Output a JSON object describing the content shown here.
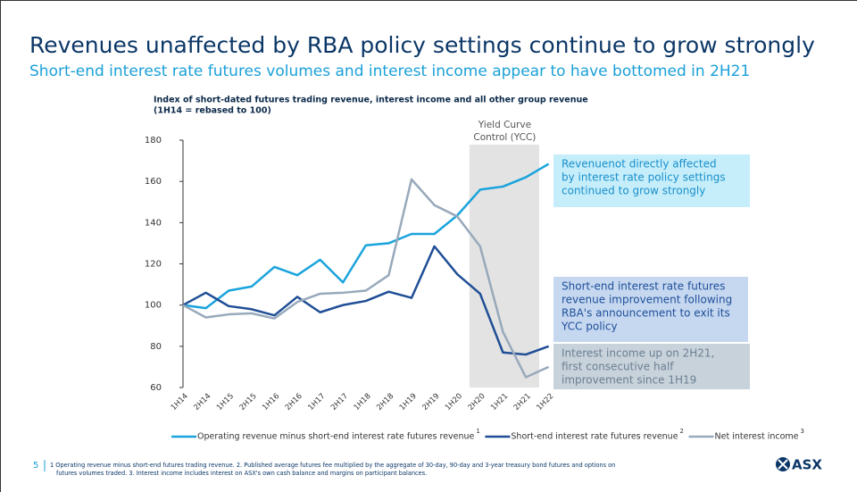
{
  "title": "Revenues unaffected by RBA policy settings continue to grow strongly",
  "subtitle": "Short-end interest rate futures volumes and interest income appear to have bottomed in 2H21",
  "page_number": "5",
  "footnote": [
    "1 Operating revenue minus short-end futures trading revenue. 2. Published average futures fee multiplied by the aggregate of 30-day, 90-day and 3-year treasury bond futures and options on",
    "futures volumes traded. 3. Interest income includes interest on ASX's own cash balance and margins on participant balances."
  ],
  "logo": "ASX",
  "chart_data": {
    "type": "line",
    "title": [
      "Index of short-dated futures trading revenue, interest income and all other group revenue",
      "(1H14 = rebased to 100)"
    ],
    "categories": [
      "1H14",
      "2H14",
      "1H15",
      "2H15",
      "1H16",
      "2H16",
      "1H17",
      "2H17",
      "1H18",
      "2H18",
      "1H19",
      "2H19",
      "1H20",
      "2H20",
      "1H21",
      "2H21",
      "1H22"
    ],
    "ylim": [
      60,
      180
    ],
    "yticks": [
      60,
      80,
      100,
      120,
      140,
      160,
      180
    ],
    "shade": {
      "label": [
        "Yield Curve",
        "Control (YCC)"
      ],
      "from": "2H20",
      "to": "2H21",
      "color": "#e3e3e3"
    },
    "series": [
      {
        "name": "Operating revenue minus short-end interest rate futures revenue",
        "note": "1",
        "color": "#1aa3dc",
        "values": [
          100,
          98.5,
          107,
          109,
          118.5,
          114.5,
          122,
          111,
          129,
          130,
          134.5,
          134.5,
          143.5,
          156,
          157.5,
          162,
          168.5
        ]
      },
      {
        "name": "Short-end interest rate futures revenue",
        "note": "2",
        "color": "#1f4e96",
        "values": [
          100,
          106,
          99.5,
          98,
          95,
          104,
          96.5,
          100,
          102,
          106.5,
          103.5,
          128.5,
          115,
          105.5,
          77,
          76,
          80
        ]
      },
      {
        "name": "Net interest income",
        "note": "3",
        "color": "#98a9bb",
        "values": [
          100,
          94,
          95.5,
          96,
          93.5,
          101.5,
          105.5,
          106,
          107,
          114.5,
          161,
          148.5,
          143,
          128.5,
          87,
          65,
          70
        ]
      }
    ],
    "annotations": [
      {
        "lines": [
          "Revenuenot directly affected",
          "by interest rate policy settings",
          "continued to grow strongly"
        ],
        "fill": "#c5eefa",
        "color": "#1a8fcc"
      },
      {
        "lines": [
          "Short-end interest rate futures",
          "revenue improvement following",
          "RBA's announcement to exit its",
          "YCC policy"
        ],
        "fill": "#c6d8f0",
        "color": "#1f4f9a"
      },
      {
        "lines": [
          "Interest income up on 2H21,",
          "first consecutive half",
          "improvement since 1H19"
        ],
        "fill": "#c8d2db",
        "color": "#6b7f92"
      }
    ]
  }
}
